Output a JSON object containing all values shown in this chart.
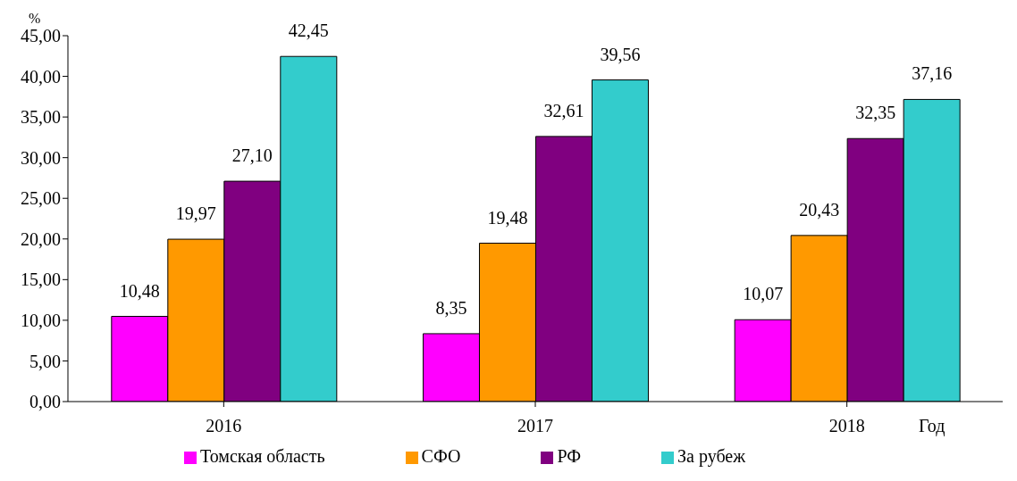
{
  "chart_data": {
    "type": "bar",
    "xlabel": "Год",
    "ylabel": "%",
    "categories": [
      "2016",
      "2017",
      "2018"
    ],
    "series": [
      {
        "name": "Томская область",
        "color": "#ff00ff",
        "values": [
          10.48,
          8.35,
          10.07
        ],
        "value_labels": [
          "10,48",
          "8,35",
          "10,07"
        ]
      },
      {
        "name": "СФО",
        "color": "#ff9900",
        "values": [
          19.97,
          19.48,
          20.43
        ],
        "value_labels": [
          "19,97",
          "19,48",
          "20,43"
        ]
      },
      {
        "name": "РФ",
        "color": "#800080",
        "values": [
          27.1,
          32.61,
          32.35
        ],
        "value_labels": [
          "27,10",
          "32,61",
          "32,35"
        ]
      },
      {
        "name": "За рубеж",
        "color": "#33cccc",
        "values": [
          42.45,
          39.56,
          37.16
        ],
        "value_labels": [
          "42,45",
          "39,56",
          "37,16"
        ]
      }
    ],
    "ylim": [
      0,
      45
    ],
    "yticks": [
      {
        "value": 0,
        "label": "0,00"
      },
      {
        "value": 5,
        "label": "5,00"
      },
      {
        "value": 10,
        "label": "10,00"
      },
      {
        "value": 15,
        "label": "15,00"
      },
      {
        "value": 20,
        "label": "20,00"
      },
      {
        "value": 25,
        "label": "25,00"
      },
      {
        "value": 30,
        "label": "30,00"
      },
      {
        "value": 35,
        "label": "35,00"
      },
      {
        "value": 40,
        "label": "40,00"
      },
      {
        "value": 45,
        "label": "45,00"
      }
    ],
    "grid": false,
    "legend": "bottom"
  }
}
